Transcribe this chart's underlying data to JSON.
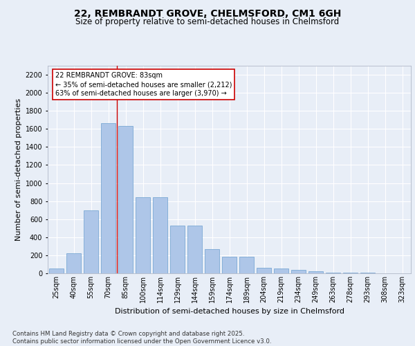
{
  "title": "22, REMBRANDT GROVE, CHELMSFORD, CM1 6GH",
  "subtitle": "Size of property relative to semi-detached houses in Chelmsford",
  "xlabel": "Distribution of semi-detached houses by size in Chelmsford",
  "ylabel": "Number of semi-detached properties",
  "categories": [
    "25sqm",
    "40sqm",
    "55sqm",
    "70sqm",
    "85sqm",
    "100sqm",
    "114sqm",
    "129sqm",
    "144sqm",
    "159sqm",
    "174sqm",
    "189sqm",
    "204sqm",
    "219sqm",
    "234sqm",
    "249sqm",
    "263sqm",
    "278sqm",
    "293sqm",
    "308sqm",
    "323sqm"
  ],
  "values": [
    50,
    220,
    700,
    1660,
    1630,
    840,
    840,
    530,
    530,
    270,
    185,
    185,
    60,
    50,
    35,
    25,
    10,
    10,
    5,
    0,
    0
  ],
  "bar_color": "#aec6e8",
  "bar_edge_color": "#6a9fcf",
  "vline_x_index": 3.5,
  "vline_color": "#cc0000",
  "annotation_text": "22 REMBRANDT GROVE: 83sqm\n← 35% of semi-detached houses are smaller (2,212)\n63% of semi-detached houses are larger (3,970) →",
  "annotation_box_color": "#ffffff",
  "annotation_box_edge_color": "#cc0000",
  "ylim": [
    0,
    2300
  ],
  "yticks": [
    0,
    200,
    400,
    600,
    800,
    1000,
    1200,
    1400,
    1600,
    1800,
    2000,
    2200
  ],
  "background_color": "#e8eef7",
  "plot_bg_color": "#e8eef7",
  "footer": "Contains HM Land Registry data © Crown copyright and database right 2025.\nContains public sector information licensed under the Open Government Licence v3.0.",
  "title_fontsize": 10,
  "subtitle_fontsize": 8.5,
  "axis_label_fontsize": 8,
  "tick_fontsize": 7,
  "footer_fontsize": 6.2,
  "ann_fontsize": 7
}
